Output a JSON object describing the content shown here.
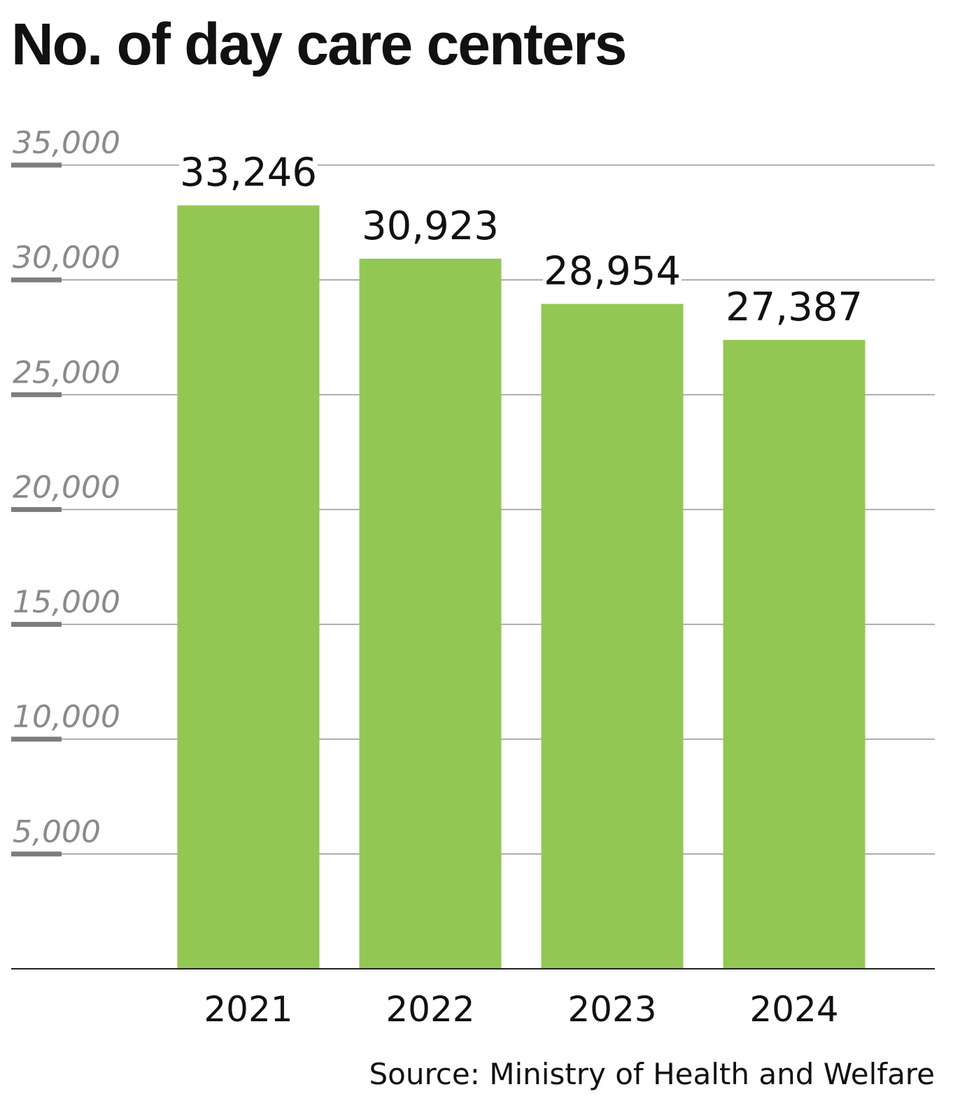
{
  "chart_data": {
    "type": "bar",
    "title": "No. of day care centers",
    "categories": [
      "2021",
      "2022",
      "2023",
      "2024"
    ],
    "values": [
      33246,
      30923,
      28954,
      27387
    ],
    "value_labels": [
      "33,246",
      "30,923",
      "28,954",
      "27,387"
    ],
    "yticks": [
      5000,
      10000,
      15000,
      20000,
      25000,
      30000,
      35000
    ],
    "ytick_labels": [
      "5,000",
      "10,000",
      "15,000",
      "20,000",
      "25,000",
      "30,000",
      "35,000"
    ],
    "ylim": [
      0,
      35000
    ],
    "grid": true,
    "xlabel": "",
    "ylabel": "",
    "source": "Source: Ministry of Health and Welfare",
    "colors": {
      "bar": "#93c754",
      "grid": "#9a9a9c",
      "tick_mark": "#7d7d80",
      "axis": "#222222"
    }
  }
}
